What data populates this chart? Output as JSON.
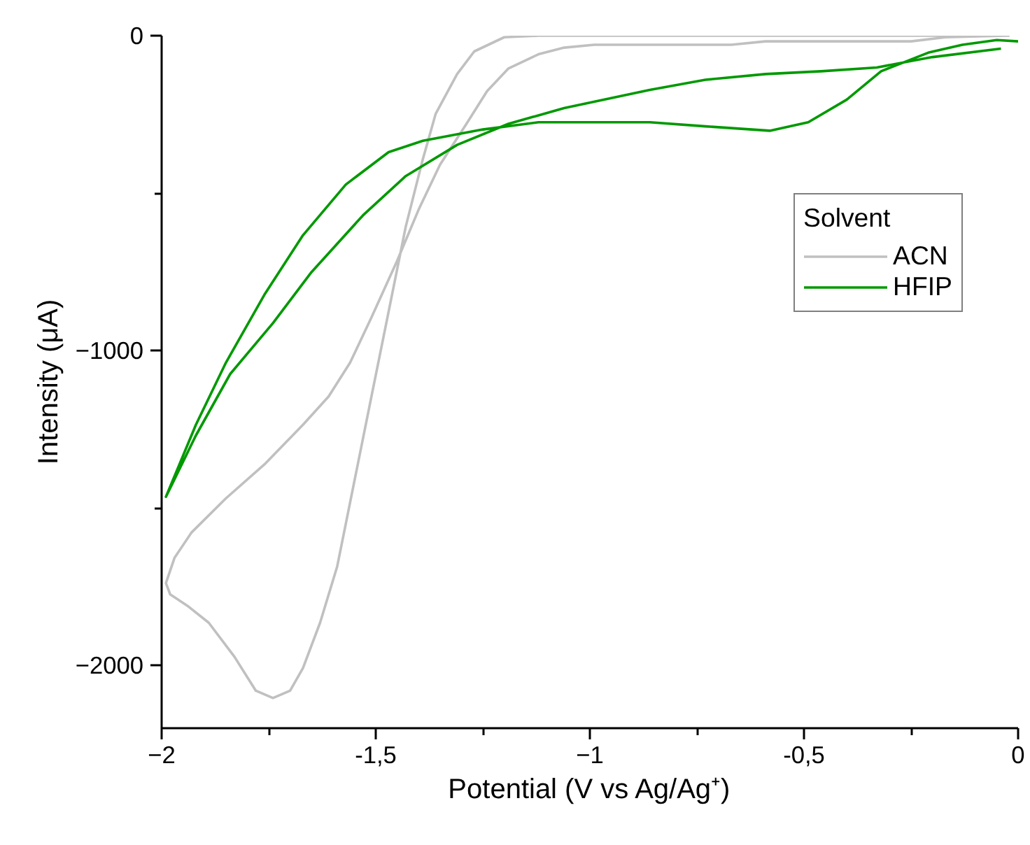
{
  "chart_data": {
    "type": "line",
    "xlabel": "Potential (V vs Ag/Ag⁺)",
    "ylabel": "Intensity (μA)",
    "legend_title": "Solvent",
    "xlim": [
      -2,
      0
    ],
    "ylim": [
      -2200,
      0
    ],
    "xticks": [
      -2,
      {
        "value": -1.75,
        "label": null
      },
      {
        "value": -1.5,
        "label": "-1,5"
      },
      {
        "value": -1.25,
        "label": null
      },
      -1,
      {
        "value": -0.75,
        "label": null
      },
      {
        "value": -0.5,
        "label": "-0,5"
      },
      {
        "value": -0.25,
        "label": null
      },
      0
    ],
    "yticks": [
      -2000,
      {
        "value": -1500,
        "label": null
      },
      -1000,
      {
        "value": -500,
        "label": null
      },
      0
    ],
    "grid": false,
    "legend": "top right",
    "marker": "none",
    "line_style": "solid",
    "series": [
      {
        "name": "ACN",
        "color": "#c0c0c0",
        "x": [
          -0.02,
          -0.5,
          -1.12,
          -1.2,
          -1.27,
          -1.31,
          -1.36,
          -1.39,
          -1.43,
          -1.47,
          -1.51,
          -1.55,
          -1.59,
          -1.63,
          -1.67,
          -1.7,
          -1.74,
          -1.78,
          -1.83,
          -1.89,
          -1.94,
          -1.98,
          -1.99,
          -1.97,
          -1.93,
          -1.85,
          -1.76,
          -1.67,
          -1.61,
          -1.56,
          -1.51,
          -1.45,
          -1.4,
          -1.35,
          -1.29,
          -1.24,
          -1.19,
          -1.12,
          -1.06,
          -0.99,
          -0.67,
          -0.59,
          -0.25,
          -0.17,
          -0.03
        ],
        "values": [
          0,
          0,
          0,
          -5,
          -50,
          -122,
          -248,
          -392,
          -607,
          -877,
          -1146,
          -1416,
          -1686,
          -1865,
          -2009,
          -2081,
          -2104,
          -2081,
          -1973,
          -1865,
          -1811,
          -1775,
          -1739,
          -1659,
          -1578,
          -1470,
          -1362,
          -1236,
          -1146,
          -1039,
          -895,
          -715,
          -553,
          -410,
          -284,
          -176,
          -104,
          -59,
          -38,
          -29,
          -29,
          -18,
          -18,
          -5,
          0
        ]
      },
      {
        "name": "HFIP",
        "color": "#009900",
        "x": [
          -0.04,
          -0.2,
          -0.33,
          -0.46,
          -0.59,
          -0.73,
          -0.86,
          -1.06,
          -1.19,
          -1.31,
          -1.43,
          -1.53,
          -1.65,
          -1.74,
          -1.84,
          -1.92,
          -1.99,
          -1.92,
          -1.85,
          -1.76,
          -1.67,
          -1.57,
          -1.47,
          -1.39,
          -1.25,
          -1.12,
          -0.86,
          -0.73,
          -0.58,
          -0.49,
          -0.4,
          -0.32,
          -0.21,
          -0.13,
          -0.05,
          0
        ],
        "values": [
          -41,
          -68,
          -101,
          -113,
          -122,
          -140,
          -172,
          -230,
          -280,
          -347,
          -446,
          -571,
          -751,
          -913,
          -1075,
          -1270,
          -1465,
          -1236,
          -1039,
          -823,
          -634,
          -473,
          -370,
          -334,
          -298,
          -275,
          -275,
          -288,
          -302,
          -275,
          -203,
          -113,
          -54,
          -29,
          -14,
          -18
        ]
      }
    ]
  }
}
